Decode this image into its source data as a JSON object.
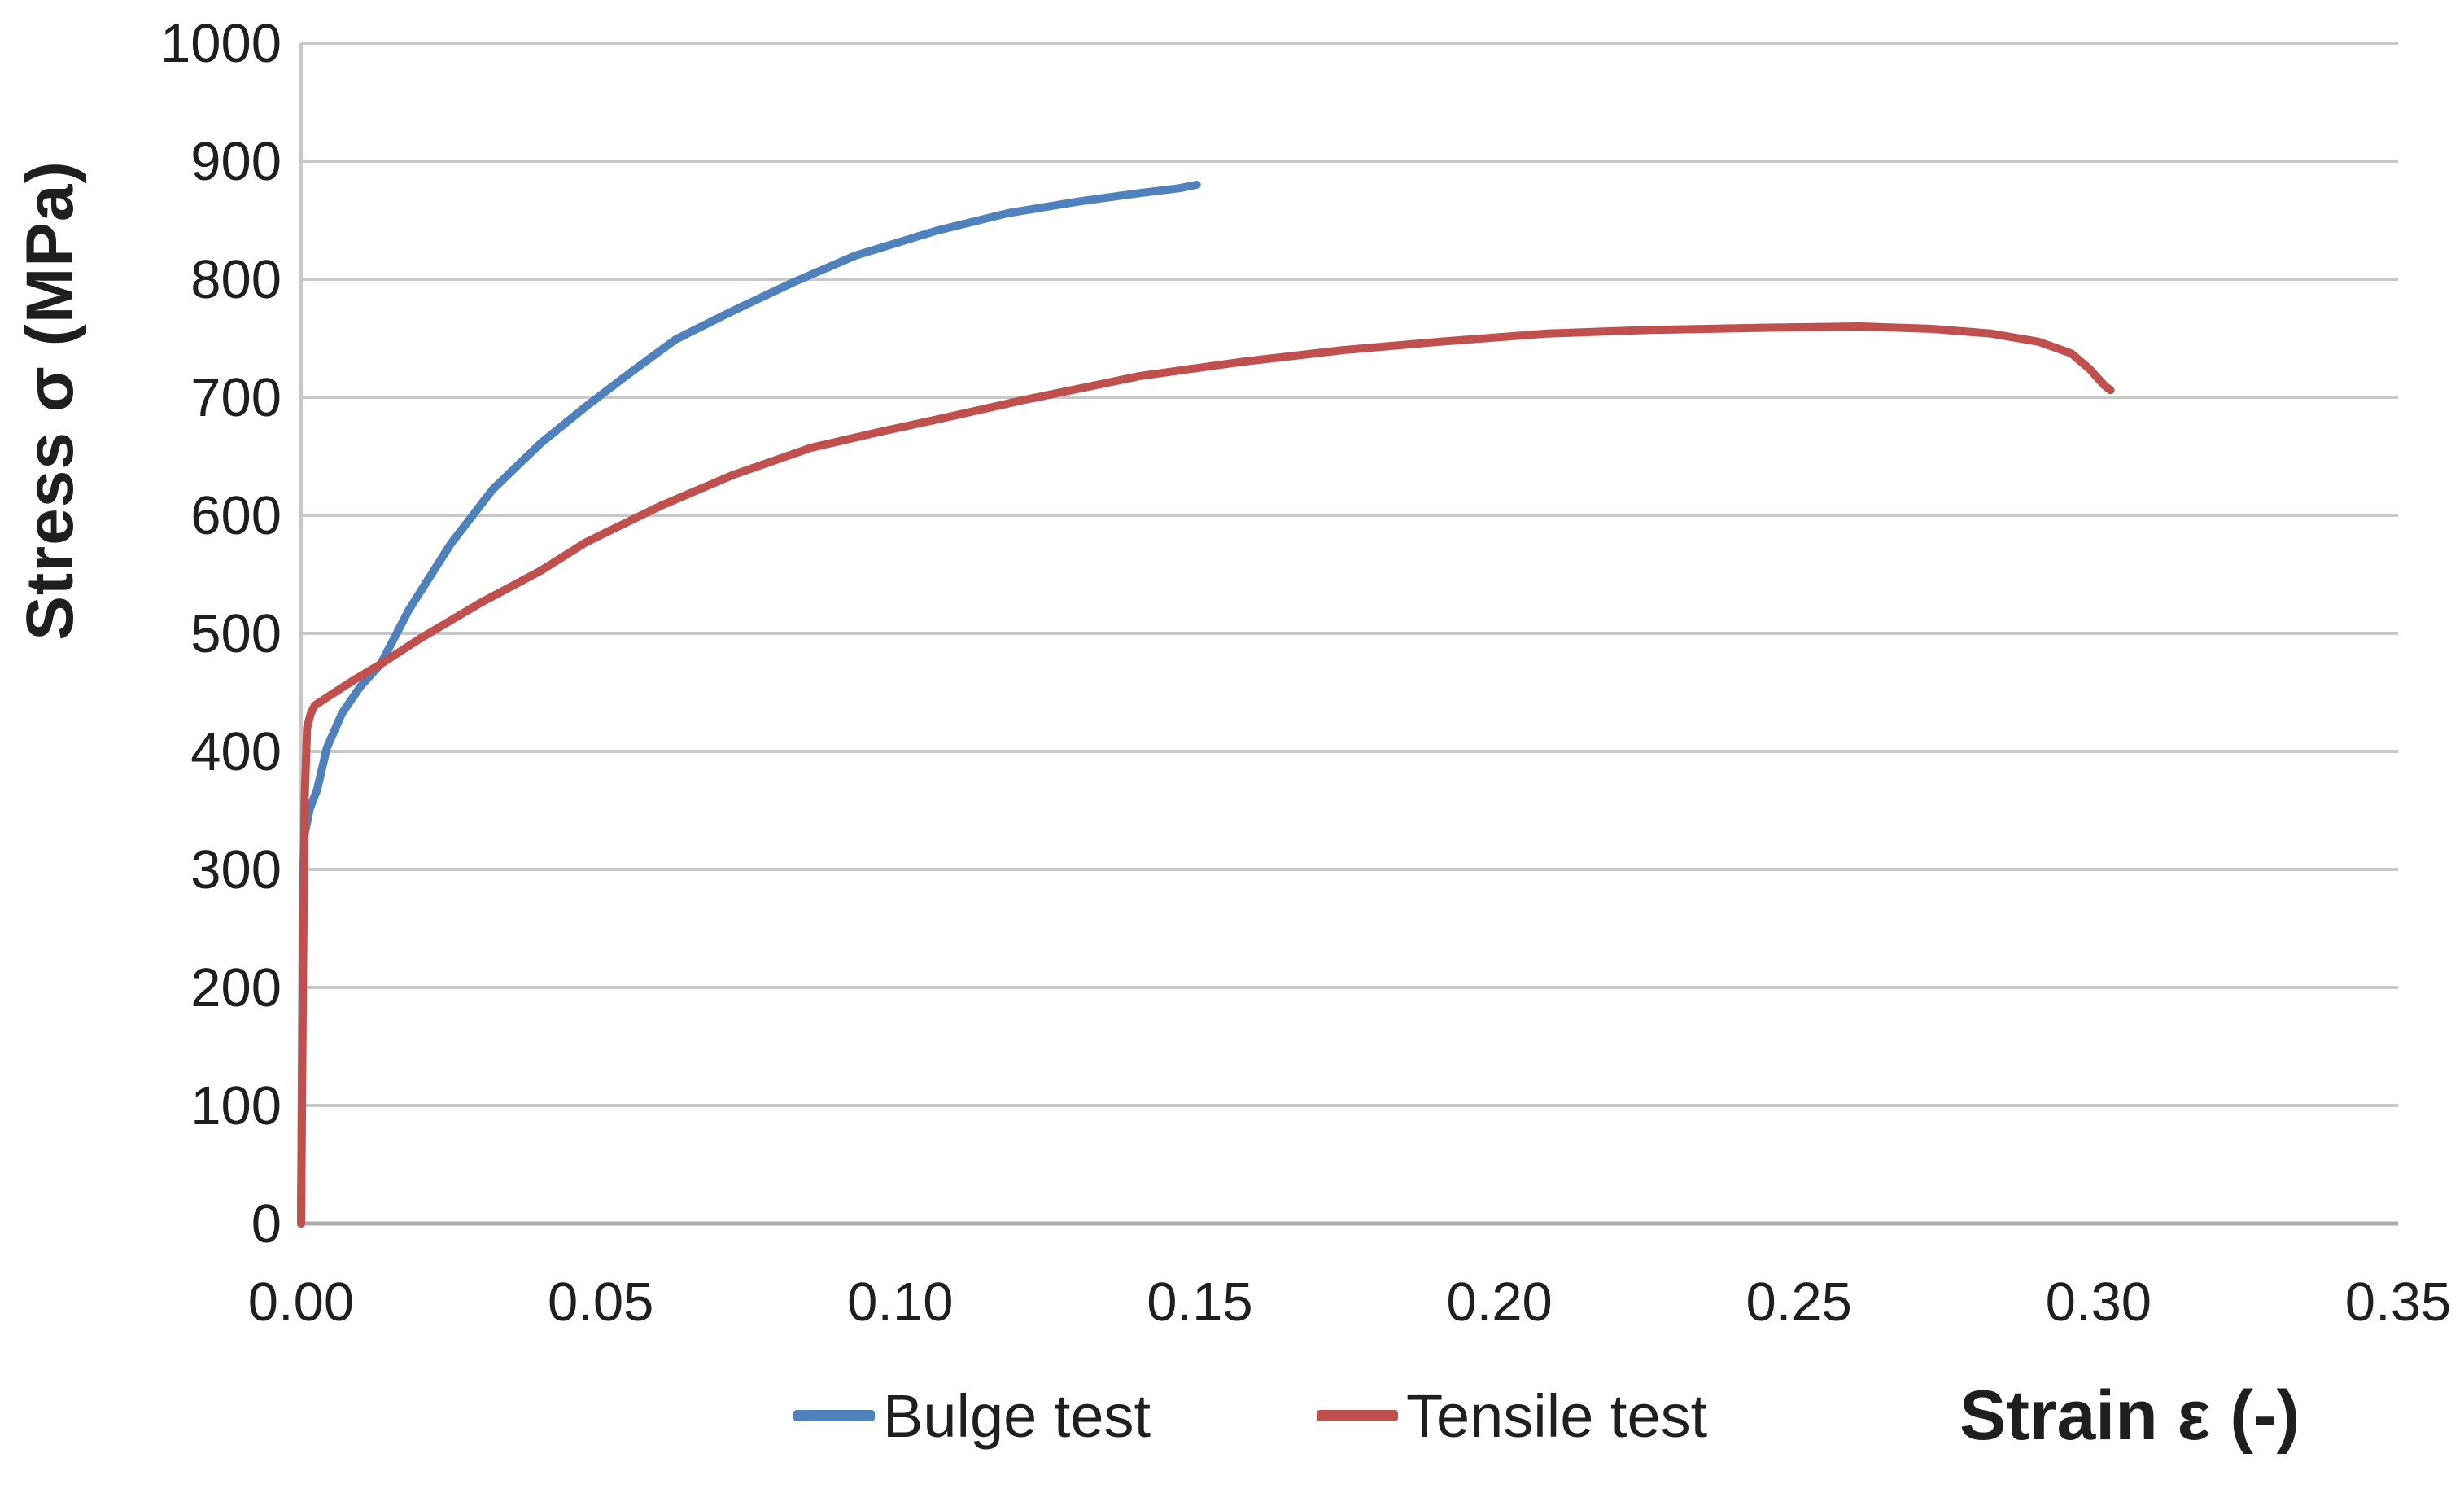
{
  "chart_data": {
    "type": "line",
    "title": "",
    "xlabel": "Strain ε (-)",
    "ylabel": "Stress σ  (MPa)",
    "xlim": [
      0,
      0.35
    ],
    "ylim": [
      0,
      1000
    ],
    "x_ticks": {
      "values": [
        0.0,
        0.05,
        0.1,
        0.15,
        0.2,
        0.25,
        0.3,
        0.35
      ],
      "labels": [
        "0.00",
        "0.05",
        "0.10",
        "0.15",
        "0.20",
        "0.25",
        "0.30",
        "0.35"
      ]
    },
    "y_ticks": {
      "values": [
        0,
        100,
        200,
        300,
        400,
        500,
        600,
        700,
        800,
        900,
        1000
      ],
      "labels": [
        "0",
        "100",
        "200",
        "300",
        "400",
        "500",
        "600",
        "700",
        "800",
        "900",
        "1000"
      ]
    },
    "grid": "horizontal",
    "legend_position": "bottom-center",
    "series": [
      {
        "name": "Bulge test",
        "color": "#4F81BD",
        "points": [
          [
            0,
            0
          ],
          [
            0.0002,
            180
          ],
          [
            0.0003,
            290
          ],
          [
            0.0006,
            330
          ],
          [
            0.0015,
            352
          ],
          [
            0.0027,
            368
          ],
          [
            0.0043,
            403
          ],
          [
            0.0068,
            432
          ],
          [
            0.0099,
            455
          ],
          [
            0.0133,
            474
          ],
          [
            0.018,
            520
          ],
          [
            0.025,
            576
          ],
          [
            0.032,
            622
          ],
          [
            0.04,
            661
          ],
          [
            0.0475,
            692
          ],
          [
            0.055,
            721
          ],
          [
            0.0625,
            749
          ],
          [
            0.072,
            773
          ],
          [
            0.082,
            797
          ],
          [
            0.0925,
            820
          ],
          [
            0.106,
            841
          ],
          [
            0.118,
            856
          ],
          [
            0.13,
            866
          ],
          [
            0.14,
            873
          ],
          [
            0.1465,
            877
          ],
          [
            0.1495,
            880
          ]
        ]
      },
      {
        "name": "Tensile test",
        "color": "#C0504D",
        "points": [
          [
            0,
            0
          ],
          [
            0.0003,
            200
          ],
          [
            0.0006,
            360
          ],
          [
            0.001,
            420
          ],
          [
            0.0016,
            432
          ],
          [
            0.0023,
            439
          ],
          [
            0.005,
            448
          ],
          [
            0.009,
            461
          ],
          [
            0.0133,
            474
          ],
          [
            0.02,
            496
          ],
          [
            0.03,
            526
          ],
          [
            0.04,
            553
          ],
          [
            0.0475,
            577
          ],
          [
            0.06,
            608
          ],
          [
            0.072,
            634
          ],
          [
            0.085,
            657
          ],
          [
            0.096,
            670
          ],
          [
            0.106,
            681
          ],
          [
            0.12,
            697
          ],
          [
            0.14,
            718
          ],
          [
            0.157,
            730
          ],
          [
            0.174,
            740
          ],
          [
            0.19,
            747
          ],
          [
            0.208,
            754
          ],
          [
            0.225,
            757
          ],
          [
            0.245,
            759
          ],
          [
            0.26,
            760
          ],
          [
            0.272,
            758
          ],
          [
            0.282,
            754
          ],
          [
            0.29,
            747
          ],
          [
            0.2955,
            737
          ],
          [
            0.2985,
            724
          ],
          [
            0.301,
            710
          ],
          [
            0.302,
            706
          ]
        ]
      }
    ]
  },
  "styles": {
    "gridline_color": "#C8C8C8",
    "axis_color": "#ABABAB",
    "tick_text_color": "#1f1f1f",
    "line_width": 10
  }
}
